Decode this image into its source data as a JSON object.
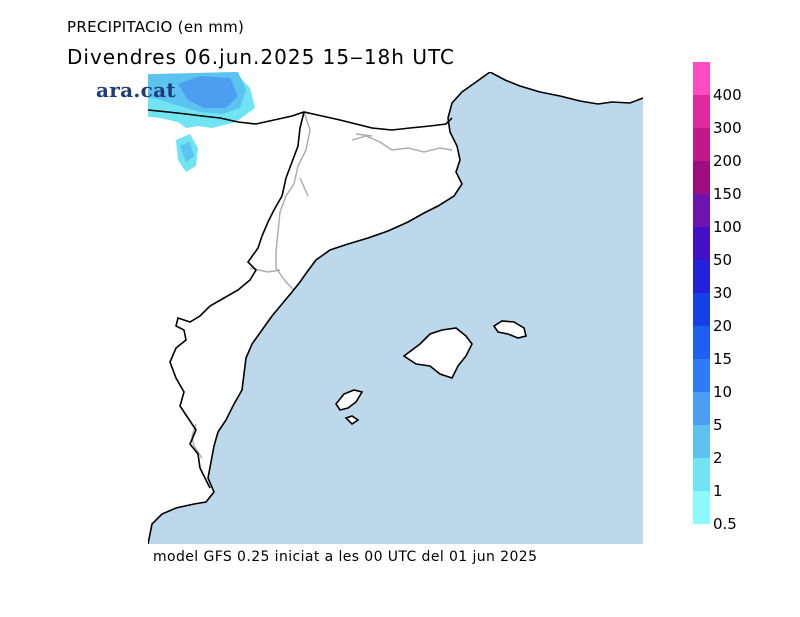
{
  "header": {
    "title_line1": "PRECIPITACIO (en mm)",
    "title_line2": "Divendres  06.jun.2025  15‒18h  UTC"
  },
  "brand": {
    "logo_text": "ara.cat"
  },
  "footer": {
    "caption": "model GFS 0.25 iniciat a les 00 UTC del 01 jun 2025"
  },
  "legend": {
    "labels": [
      "400",
      "300",
      "200",
      "150",
      "100",
      "50",
      "30",
      "20",
      "15",
      "10",
      "5",
      "2",
      "1",
      "0.5"
    ],
    "colors": [
      "#ff4cc4",
      "#e0289f",
      "#c01a8a",
      "#9c0e80",
      "#6c14ad",
      "#4410c6",
      "#2222dd",
      "#1440e6",
      "#1e5ff0",
      "#2c7df2",
      "#4c9ff0",
      "#5cc2f0",
      "#70e4f2",
      "#8cfaff"
    ]
  },
  "map": {
    "colors": {
      "sea": "#bcd8ea",
      "land": "#ffffff",
      "coast": "#000000",
      "border": "#aaaaaa"
    },
    "precip_levels_shown": [
      "0.5",
      "1",
      "2",
      "5"
    ]
  }
}
